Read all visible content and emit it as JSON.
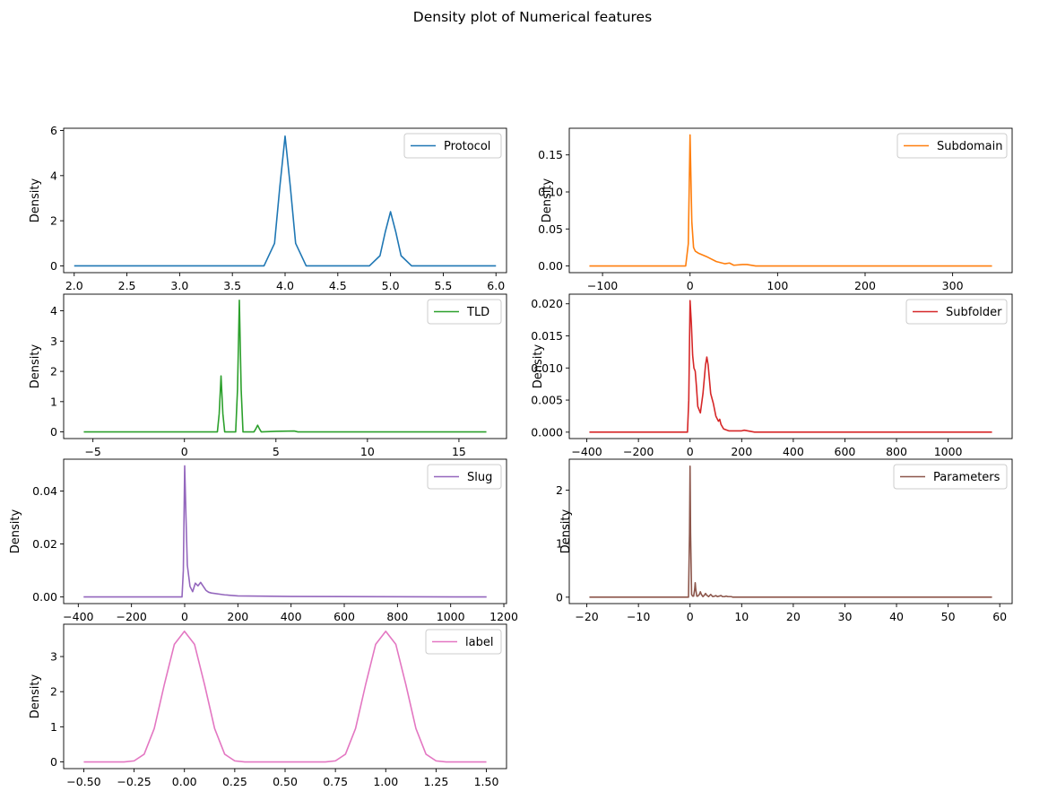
{
  "figure": {
    "title": "Density plot of Numerical features"
  },
  "chart_data": [
    {
      "type": "line",
      "title": "",
      "xlabel": "",
      "ylabel": "Density",
      "legend": "upper-right",
      "grid": false,
      "series": [
        {
          "name": "Protocol",
          "color": "#1f77b4",
          "x": [
            2.0,
            3.8,
            3.9,
            3.95,
            4.0,
            4.05,
            4.1,
            4.2,
            4.8,
            4.9,
            4.95,
            5.0,
            5.05,
            5.1,
            5.2,
            6.0
          ],
          "y": [
            0,
            0,
            1.0,
            3.5,
            5.75,
            3.5,
            1.0,
            0,
            0,
            0.45,
            1.5,
            2.4,
            1.5,
            0.45,
            0,
            0
          ]
        }
      ],
      "xlim": [
        1.9,
        6.1
      ],
      "ylim": [
        -0.3,
        6.1
      ],
      "xticks": [
        2.0,
        2.5,
        3.0,
        3.5,
        4.0,
        4.5,
        5.0,
        5.5,
        6.0
      ],
      "xtick_labels": [
        "2.0",
        "2.5",
        "3.0",
        "3.5",
        "4.0",
        "4.5",
        "5.0",
        "5.5",
        "6.0"
      ],
      "yticks": [
        0,
        2,
        4,
        6
      ],
      "ytick_labels": [
        "0",
        "2",
        "4",
        "6"
      ]
    },
    {
      "type": "line",
      "title": "",
      "xlabel": "",
      "ylabel": "Density",
      "legend": "upper-right",
      "grid": false,
      "series": [
        {
          "name": "Subdomain",
          "color": "#ff7f0e",
          "x": [
            -115,
            -5,
            -2,
            0,
            2,
            4,
            6,
            10,
            20,
            30,
            40,
            45,
            50,
            60,
            65,
            75,
            100,
            200,
            345
          ],
          "y": [
            0,
            0,
            0.03,
            0.177,
            0.06,
            0.025,
            0.02,
            0.017,
            0.012,
            0.006,
            0.003,
            0.004,
            0.001,
            0.002,
            0.002,
            0,
            0,
            0,
            0
          ]
        }
      ],
      "xlim": [
        -138,
        368
      ],
      "ylim": [
        -0.009,
        0.186
      ],
      "xticks": [
        -100,
        0,
        100,
        200,
        300
      ],
      "xtick_labels": [
        "−100",
        "0",
        "100",
        "200",
        "300"
      ],
      "yticks": [
        0.0,
        0.05,
        0.1,
        0.15
      ],
      "ytick_labels": [
        "0.00",
        "0.05",
        "0.10",
        "0.15"
      ]
    },
    {
      "type": "line",
      "title": "",
      "xlabel": "",
      "ylabel": "Density",
      "legend": "upper-right",
      "grid": false,
      "series": [
        {
          "name": "TLD",
          "color": "#2ca02c",
          "x": [
            -5.5,
            1.8,
            1.9,
            2.0,
            2.1,
            2.2,
            2.8,
            2.9,
            3.0,
            3.1,
            3.2,
            3.8,
            3.9,
            4.0,
            4.1,
            4.2,
            5.0,
            6.0,
            6.2,
            16.5
          ],
          "y": [
            0,
            0,
            0.6,
            1.85,
            0.6,
            0,
            0,
            1.4,
            4.35,
            1.4,
            0,
            0,
            0.1,
            0.22,
            0.1,
            0,
            0.02,
            0.03,
            0,
            0
          ]
        }
      ],
      "xlim": [
        -6.6,
        17.6
      ],
      "ylim": [
        -0.22,
        4.55
      ],
      "xticks": [
        -5,
        0,
        5,
        10,
        15
      ],
      "xtick_labels": [
        "−5",
        "0",
        "5",
        "10",
        "15"
      ],
      "yticks": [
        0,
        1,
        2,
        3,
        4
      ],
      "ytick_labels": [
        "0",
        "1",
        "2",
        "3",
        "4"
      ]
    },
    {
      "type": "line",
      "title": "",
      "xlabel": "",
      "ylabel": "Density",
      "legend": "upper-right",
      "grid": false,
      "series": [
        {
          "name": "Subfolder",
          "color": "#d62728",
          "x": [
            -390,
            -10,
            -5,
            0,
            5,
            10,
            15,
            20,
            25,
            30,
            40,
            50,
            60,
            65,
            70,
            80,
            90,
            100,
            110,
            115,
            120,
            130,
            150,
            200,
            210,
            250,
            1170
          ],
          "y": [
            0,
            0,
            0.005,
            0.0205,
            0.017,
            0.012,
            0.01,
            0.0095,
            0.007,
            0.004,
            0.003,
            0.006,
            0.0105,
            0.0117,
            0.0105,
            0.006,
            0.0045,
            0.0025,
            0.0017,
            0.002,
            0.0012,
            0.0005,
            0.0002,
            0.0002,
            0.0003,
            0,
            0
          ]
        }
      ],
      "xlim": [
        -468,
        1248
      ],
      "ylim": [
        -0.001,
        0.0215
      ],
      "xticks": [
        -400,
        -200,
        0,
        200,
        400,
        600,
        800,
        1000
      ],
      "xtick_labels": [
        "−400",
        "−200",
        "0",
        "200",
        "400",
        "600",
        "800",
        "1000"
      ],
      "yticks": [
        0.0,
        0.005,
        0.01,
        0.015,
        0.02
      ],
      "ytick_labels": [
        "0.000",
        "0.005",
        "0.010",
        "0.015",
        "0.020"
      ]
    },
    {
      "type": "line",
      "title": "",
      "xlabel": "",
      "ylabel": "Density",
      "legend": "upper-right",
      "grid": false,
      "series": [
        {
          "name": "Slug",
          "color": "#9467bd",
          "x": [
            -380,
            -10,
            -5,
            0,
            5,
            10,
            20,
            30,
            40,
            50,
            60,
            70,
            80,
            90,
            100,
            150,
            200,
            400,
            1135
          ],
          "y": [
            0,
            0,
            0.01,
            0.0495,
            0.03,
            0.012,
            0.004,
            0.002,
            0.0052,
            0.0042,
            0.0055,
            0.004,
            0.0025,
            0.0018,
            0.0015,
            0.0008,
            0.0004,
            0.0002,
            0
          ]
        }
      ],
      "xlim": [
        -455,
        1210
      ],
      "ylim": [
        -0.0025,
        0.052
      ],
      "xticks": [
        -400,
        -200,
        0,
        200,
        400,
        600,
        800,
        1000,
        1200
      ],
      "xtick_labels": [
        "−400",
        "−200",
        "0",
        "200",
        "400",
        "600",
        "800",
        "1000",
        "1200"
      ],
      "yticks": [
        0.0,
        0.02,
        0.04
      ],
      "ytick_labels": [
        "0.00",
        "0.02",
        "0.04"
      ]
    },
    {
      "type": "line",
      "title": "",
      "xlabel": "",
      "ylabel": "Density",
      "legend": "upper-right",
      "grid": false,
      "series": [
        {
          "name": "Parameters",
          "color": "#8c564b",
          "x": [
            -19.5,
            -0.3,
            -0.1,
            0.0,
            0.1,
            0.3,
            0.5,
            0.7,
            0.9,
            1.0,
            1.1,
            1.3,
            1.5,
            1.8,
            2.0,
            2.2,
            2.5,
            2.8,
            3.0,
            3.2,
            3.6,
            4.0,
            4.4,
            4.8,
            5.0,
            5.3,
            6.0,
            6.3,
            6.7,
            7.0,
            7.3,
            8.0,
            8.3,
            58.5
          ],
          "y": [
            0,
            0,
            1.2,
            2.45,
            1.2,
            0.05,
            0.02,
            0.02,
            0.15,
            0.27,
            0.15,
            0.02,
            0.02,
            0.05,
            0.1,
            0.05,
            0.01,
            0.04,
            0.07,
            0.04,
            0.01,
            0.05,
            0.01,
            0.02,
            0.03,
            0.01,
            0.03,
            0.01,
            0.01,
            0.02,
            0.01,
            0.01,
            0,
            0
          ]
        }
      ],
      "xlim": [
        -23.4,
        62.4
      ],
      "ylim": [
        -0.12,
        2.58
      ],
      "xticks": [
        -20,
        -10,
        0,
        10,
        20,
        30,
        40,
        50,
        60
      ],
      "xtick_labels": [
        "−20",
        "−10",
        "0",
        "10",
        "20",
        "30",
        "40",
        "50",
        "60"
      ],
      "yticks": [
        0,
        1,
        2
      ],
      "ytick_labels": [
        "0",
        "1",
        "2"
      ]
    },
    {
      "type": "line",
      "title": "",
      "xlabel": "",
      "ylabel": "Density",
      "legend": "upper-right",
      "grid": false,
      "series": [
        {
          "name": "label",
          "color": "#e377c2",
          "x": [
            -0.5,
            -0.3,
            -0.25,
            -0.2,
            -0.15,
            -0.1,
            -0.05,
            0.0,
            0.05,
            0.1,
            0.15,
            0.2,
            0.25,
            0.3,
            0.7,
            0.75,
            0.8,
            0.85,
            0.9,
            0.95,
            1.0,
            1.05,
            1.1,
            1.15,
            1.2,
            1.25,
            1.3,
            1.5
          ],
          "y": [
            0,
            0,
            0.03,
            0.22,
            0.95,
            2.2,
            3.35,
            3.72,
            3.35,
            2.2,
            0.95,
            0.22,
            0.03,
            0,
            0,
            0.03,
            0.22,
            0.95,
            2.2,
            3.35,
            3.72,
            3.35,
            2.2,
            0.95,
            0.22,
            0.03,
            0,
            0
          ]
        }
      ],
      "xlim": [
        -0.6,
        1.6
      ],
      "ylim": [
        -0.19,
        3.92
      ],
      "xticks": [
        -0.5,
        -0.25,
        0.0,
        0.25,
        0.5,
        0.75,
        1.0,
        1.25,
        1.5
      ],
      "xtick_labels": [
        "−0.50",
        "−0.25",
        "0.00",
        "0.25",
        "0.50",
        "0.75",
        "1.00",
        "1.25",
        "1.50"
      ],
      "yticks": [
        0,
        1,
        2,
        3
      ],
      "ytick_labels": [
        "0",
        "1",
        "2",
        "3"
      ]
    }
  ]
}
